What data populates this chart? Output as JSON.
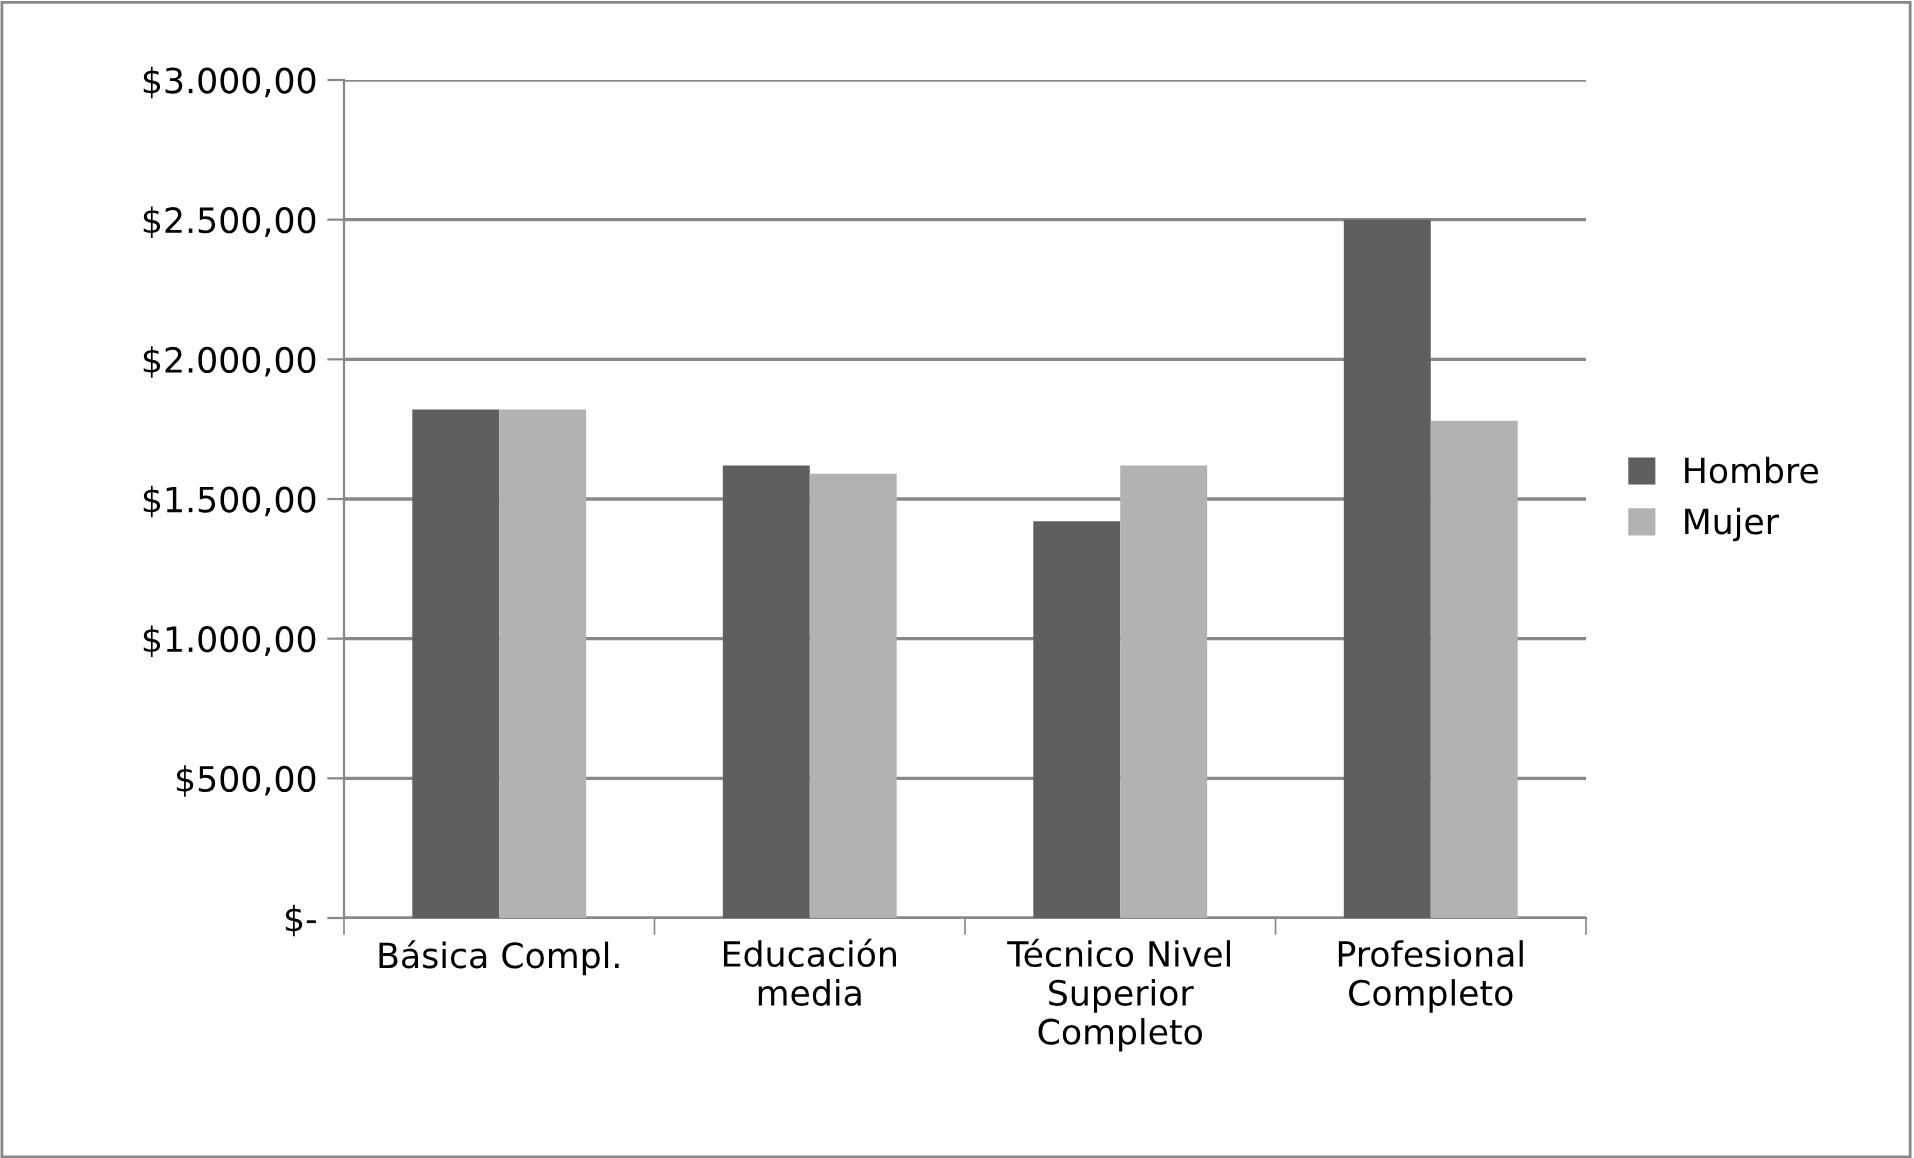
{
  "chart_data": {
    "type": "bar",
    "categories": [
      "Básica Compl.",
      "Educación\nmedia",
      "Técnico Nivel\nSuperior\nCompleto",
      "Profesional\nCompleto"
    ],
    "series": [
      {
        "name": "Hombre",
        "color": "#5f5f5f",
        "values": [
          1820,
          1620,
          1420,
          2500
        ]
      },
      {
        "name": "Mujer",
        "color": "#b2b2b2",
        "values": [
          1820,
          1590,
          1620,
          1780
        ]
      }
    ],
    "ylim": [
      0,
      3000
    ],
    "yticks": [
      {
        "value": 0,
        "label": "$-"
      },
      {
        "value": 500,
        "label": "$500,00"
      },
      {
        "value": 1000,
        "label": "$1.000,00"
      },
      {
        "value": 1500,
        "label": "$1.500,00"
      },
      {
        "value": 2000,
        "label": "$2.000,00"
      },
      {
        "value": 2500,
        "label": "$2.500,00"
      },
      {
        "value": 3000,
        "label": "$3.000,00"
      }
    ],
    "grid": "y",
    "legend": "right"
  }
}
